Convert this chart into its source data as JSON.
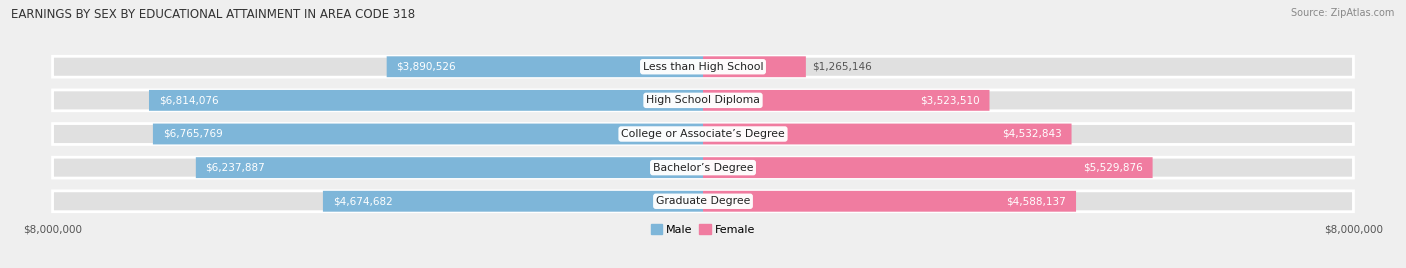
{
  "title": "EARNINGS BY SEX BY EDUCATIONAL ATTAINMENT IN AREA CODE 318",
  "source": "Source: ZipAtlas.com",
  "categories": [
    "Less than High School",
    "High School Diploma",
    "College or Associate’s Degree",
    "Bachelor’s Degree",
    "Graduate Degree"
  ],
  "male_values": [
    3890526,
    6814076,
    6765769,
    6237887,
    4674682
  ],
  "female_values": [
    1265146,
    3523510,
    4532843,
    5529876,
    4588137
  ],
  "max_value": 8000000,
  "male_color": "#7eb6d9",
  "female_color": "#f07ca0",
  "background_color": "#efefef",
  "bar_background_color": "#e0e0e0",
  "title_fontsize": 8.5,
  "label_fontsize": 7.5,
  "axis_label_fontsize": 7.5,
  "legend_fontsize": 8,
  "category_fontsize": 7.8
}
